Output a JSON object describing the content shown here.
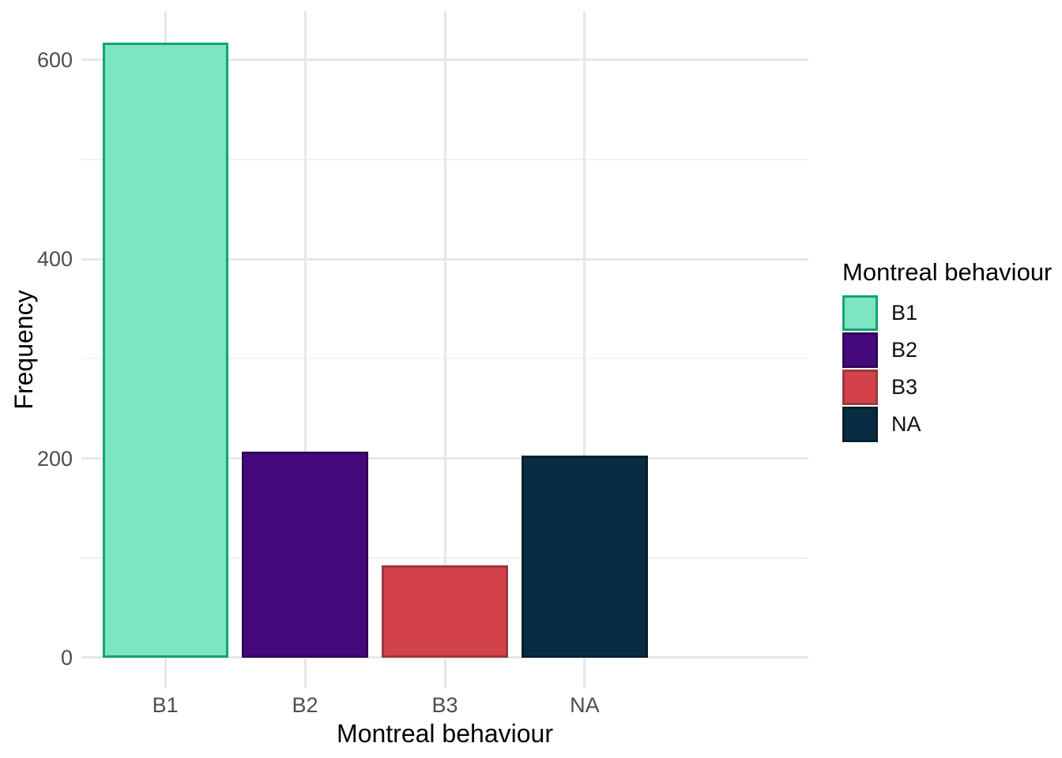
{
  "chart_data": {
    "type": "bar",
    "title": "",
    "xlabel": "Montreal behaviour",
    "ylabel": "Frequency",
    "categories": [
      "B1",
      "B2",
      "B3",
      "NA"
    ],
    "values": [
      617,
      207,
      93,
      203
    ],
    "bar_colors": [
      {
        "fill": "#7de5c1",
        "stroke": "#12a17b"
      },
      {
        "fill": "#45097c",
        "stroke": "#300658"
      },
      {
        "fill": "#d3424b",
        "stroke": "#9a393e"
      },
      {
        "fill": "#0a2c42",
        "stroke": "#061e2e"
      }
    ],
    "y_ticks": [
      0,
      200,
      400,
      600
    ],
    "y_minor_ticks": [
      100,
      300,
      500
    ],
    "y_domain": [
      -31,
      649
    ],
    "grid": {
      "show": true,
      "major_color": "#e7e7e7",
      "minor_color": "#f1f1f1",
      "background": "#ffffff"
    },
    "legend": {
      "title": "Montreal behaviour",
      "position": "right",
      "entries": [
        "B1",
        "B2",
        "B3",
        "NA"
      ]
    },
    "text_colors": {
      "tick_labels": "#4d4d4d",
      "axis_titles": "#000000",
      "legend_title": "#000000",
      "legend_labels": "#111111"
    }
  }
}
